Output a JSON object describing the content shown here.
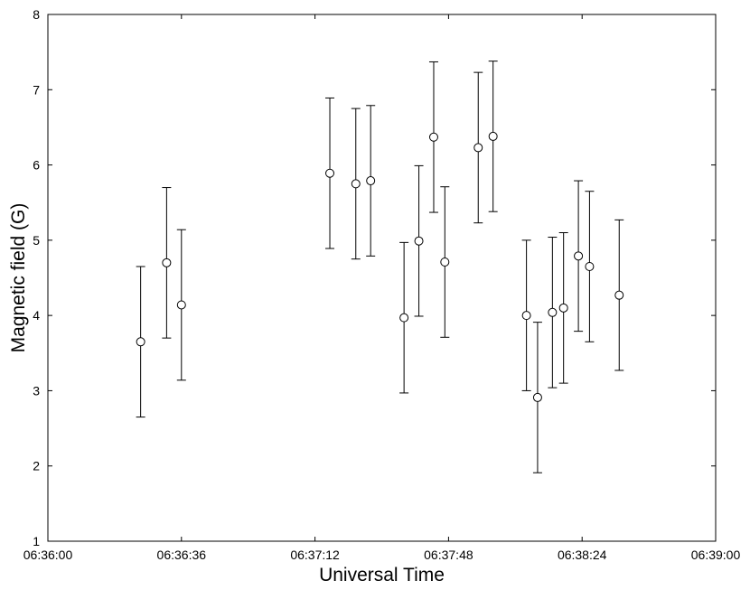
{
  "chart_data": {
    "type": "scatter",
    "xlabel": "Universal Time",
    "ylabel": "Magnetic field (G)",
    "xlim": [
      "06:36:00",
      "06:39:00"
    ],
    "ylim": [
      1,
      8
    ],
    "x_ticks": [
      "06:36:00",
      "06:36:36",
      "06:37:12",
      "06:37:48",
      "06:38:24",
      "06:39:00"
    ],
    "y_ticks": [
      "1",
      "2",
      "3",
      "4",
      "5",
      "6",
      "7",
      "8"
    ],
    "error_bars": "symmetric, ±1 G",
    "marker": "open circle",
    "grid": false,
    "points": [
      {
        "x": "06:36:25",
        "y": 3.65,
        "err": 1.0
      },
      {
        "x": "06:36:32",
        "y": 4.7,
        "err": 1.0
      },
      {
        "x": "06:36:36",
        "y": 4.14,
        "err": 1.0
      },
      {
        "x": "06:37:16",
        "y": 5.89,
        "err": 1.0
      },
      {
        "x": "06:37:23",
        "y": 5.75,
        "err": 1.0
      },
      {
        "x": "06:37:27",
        "y": 5.79,
        "err": 1.0
      },
      {
        "x": "06:37:36",
        "y": 3.97,
        "err": 1.0
      },
      {
        "x": "06:37:40",
        "y": 4.99,
        "err": 1.0
      },
      {
        "x": "06:37:44",
        "y": 6.37,
        "err": 1.0
      },
      {
        "x": "06:37:47",
        "y": 4.71,
        "err": 1.0
      },
      {
        "x": "06:37:56",
        "y": 6.23,
        "err": 1.0
      },
      {
        "x": "06:38:00",
        "y": 6.38,
        "err": 1.0
      },
      {
        "x": "06:38:09",
        "y": 4.0,
        "err": 1.0
      },
      {
        "x": "06:38:12",
        "y": 2.91,
        "err": 1.0
      },
      {
        "x": "06:38:16",
        "y": 4.04,
        "err": 1.0
      },
      {
        "x": "06:38:19",
        "y": 4.1,
        "err": 1.0
      },
      {
        "x": "06:38:23",
        "y": 4.79,
        "err": 1.0
      },
      {
        "x": "06:38:26",
        "y": 4.65,
        "err": 1.0
      },
      {
        "x": "06:38:34",
        "y": 4.27,
        "err": 1.0
      }
    ]
  }
}
